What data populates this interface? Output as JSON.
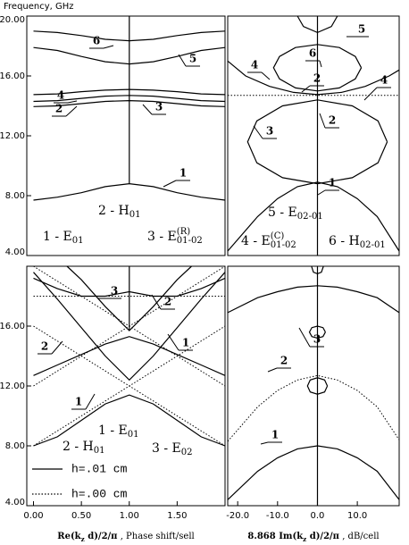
{
  "chart_data": [
    {
      "type": "line",
      "ylabel": "Frequency, GHz",
      "xlim": [
        -0.07,
        2.0
      ],
      "ylim": [
        4,
        20
      ],
      "yticks": [
        {
          "value": 4,
          "label": "4.00"
        },
        {
          "value": 8,
          "label": "8.00"
        },
        {
          "value": 12,
          "label": "12.00"
        },
        {
          "value": 16,
          "label": "16.00"
        },
        {
          "value": 20,
          "label": "20.00"
        }
      ],
      "series": [
        {
          "style": "solid",
          "x": [
            0,
            0.25,
            0.5,
            0.75,
            1,
            1.25,
            1.5,
            1.75,
            2
          ],
          "values": [
            7.7,
            7.9,
            8.2,
            8.6,
            8.8,
            8.6,
            8.2,
            7.9,
            7.7
          ]
        },
        {
          "style": "solid",
          "x": [
            0,
            0.25,
            0.5,
            0.75,
            1,
            1.25,
            1.5,
            1.75,
            2
          ],
          "values": [
            13.95,
            14.0,
            14.15,
            14.3,
            14.35,
            14.3,
            14.15,
            14.0,
            13.95
          ]
        },
        {
          "style": "solid",
          "x": [
            0,
            0.25,
            0.5,
            0.75,
            1,
            1.25,
            1.5,
            1.75,
            2
          ],
          "values": [
            14.3,
            14.35,
            14.5,
            14.65,
            14.7,
            14.65,
            14.5,
            14.35,
            14.3
          ]
        },
        {
          "style": "solid",
          "x": [
            0,
            0.25,
            0.5,
            0.75,
            1,
            1.25,
            1.5,
            1.75,
            2
          ],
          "values": [
            14.75,
            14.8,
            14.95,
            15.05,
            15.1,
            15.05,
            14.95,
            14.8,
            14.75
          ]
        },
        {
          "style": "solid",
          "x": [
            0,
            0.25,
            0.5,
            0.75,
            1,
            1.25,
            1.5,
            1.75,
            2
          ],
          "values": [
            17.9,
            17.7,
            17.3,
            16.95,
            16.8,
            16.95,
            17.3,
            17.7,
            17.9
          ]
        },
        {
          "style": "solid",
          "x": [
            0,
            0.25,
            0.5,
            0.75,
            1,
            1.25,
            1.5,
            1.75,
            2
          ],
          "values": [
            19.0,
            18.9,
            18.7,
            18.45,
            18.35,
            18.45,
            18.7,
            18.9,
            19.0
          ]
        },
        {
          "style": "solid",
          "x": [
            1,
            1
          ],
          "values": [
            8.8,
            20
          ]
        }
      ],
      "curve_labels": [
        "6",
        "5",
        "4",
        "2",
        "3",
        "1"
      ],
      "annotations": [
        [
          {
            "text": "2 - H"
          },
          {
            "text": "01",
            "script": "sub"
          }
        ],
        [
          {
            "text": "1 - E"
          },
          {
            "text": "01",
            "script": "sub"
          }
        ],
        [
          {
            "text": "3 - E"
          },
          {
            "text": "(R)",
            "script": "sup"
          },
          {
            "text": "01-02",
            "script": "sub"
          }
        ]
      ]
    },
    {
      "type": "line",
      "xlim": [
        -22.5,
        20.5
      ],
      "ylim": [
        4,
        20
      ],
      "series": [
        {
          "style": "solid",
          "x": [
            -22.5,
            -15,
            -10,
            -5,
            0,
            5,
            10,
            15,
            20.5
          ],
          "values": [
            4.3,
            6.6,
            7.8,
            8.6,
            8.9,
            8.6,
            7.8,
            6.6,
            4.3
          ]
        },
        {
          "style": "solid",
          "x": [
            17.5,
            15.2,
            8.75,
            0,
            -8.75,
            -15.2,
            -17.5,
            -15.2,
            -8.75,
            0,
            8.75,
            15.2,
            17.5
          ],
          "values": [
            11.6,
            13.0,
            14.0,
            14.4,
            14.0,
            13.0,
            11.6,
            10.2,
            9.2,
            8.8,
            9.2,
            10.2,
            11.6
          ]
        },
        {
          "style": "solid",
          "x": [
            11,
            9.5,
            5.5,
            0,
            -5.5,
            -9.5,
            -11,
            -9.5,
            -5.5,
            0,
            5.5,
            9.5,
            11
          ],
          "values": [
            16.55,
            17.3,
            17.9,
            18.1,
            17.9,
            17.3,
            16.55,
            15.8,
            15.2,
            15.0,
            15.2,
            15.8,
            16.55
          ]
        },
        {
          "style": "solid",
          "x": [
            -5,
            -3.5,
            0,
            3.5,
            5
          ],
          "values": [
            20,
            19.3,
            18.9,
            19.3,
            20
          ]
        },
        {
          "style": "solid",
          "x": [
            -22.5,
            -18,
            -12,
            -6,
            0,
            6,
            12,
            18,
            20.5
          ],
          "values": [
            17.0,
            16.0,
            15.3,
            14.9,
            14.75,
            14.9,
            15.3,
            16.0,
            16.4
          ]
        },
        {
          "style": "dotted",
          "x": [
            -22.5,
            20.5
          ],
          "values": [
            14.7,
            14.7
          ]
        },
        {
          "style": "solid",
          "x": [
            0,
            0
          ],
          "values": [
            4,
            20
          ]
        }
      ],
      "curve_labels": [
        "5",
        "6",
        "4",
        "2",
        "4",
        "2",
        "3",
        "1"
      ],
      "annotations": [
        [
          {
            "text": "5 - E"
          },
          {
            "text": "02-01",
            "script": "sub"
          }
        ],
        [
          {
            "text": "4 - E"
          },
          {
            "text": "(C)",
            "script": "sup"
          },
          {
            "text": "01-02",
            "script": "sub"
          }
        ],
        [
          {
            "text": "6 - H"
          },
          {
            "text": "02-01",
            "script": "sub"
          }
        ]
      ]
    },
    {
      "type": "line",
      "xlabel": [
        {
          "text": "Re(k",
          "weight": "bold"
        },
        {
          "text": "z",
          "script": "sub",
          "weight": "bold"
        },
        {
          "text": " d)/2/π",
          "weight": "bold"
        },
        {
          "text": " , Phase shift/sell"
        }
      ],
      "xlim": [
        -0.07,
        2.0
      ],
      "ylim": [
        4,
        20
      ],
      "xticks": [
        {
          "value": 0,
          "label": "0.00"
        },
        {
          "value": 0.5,
          "label": "0.50"
        },
        {
          "value": 1,
          "label": "1.00"
        },
        {
          "value": 1.5,
          "label": "1.50"
        }
      ],
      "yticks": [
        {
          "value": 4,
          "label": "4.00"
        },
        {
          "value": 8,
          "label": "8.00"
        },
        {
          "value": 12,
          "label": "12.00"
        },
        {
          "value": 16,
          "label": "16.00"
        }
      ],
      "series": [
        {
          "name": "h=.01 cm",
          "style": "solid",
          "x": [
            0,
            0.25,
            0.5,
            0.75,
            1,
            1.25,
            1.5,
            1.75,
            2
          ],
          "values": [
            8.0,
            8.6,
            9.7,
            10.8,
            11.4,
            10.8,
            9.7,
            8.6,
            8.0
          ]
        },
        {
          "style": "solid",
          "x": [
            0,
            0.25,
            0.5,
            0.75,
            1,
            1.25,
            1.5,
            1.75,
            2
          ],
          "values": [
            19.6,
            17.8,
            15.9,
            14.0,
            12.4,
            14.0,
            15.9,
            17.8,
            19.6
          ]
        },
        {
          "style": "solid",
          "x": [
            0,
            0.25,
            0.5,
            0.75,
            1,
            1.25,
            1.5,
            1.75,
            2
          ],
          "values": [
            12.7,
            13.4,
            14.1,
            14.8,
            15.3,
            14.8,
            14.1,
            13.4,
            12.7
          ]
        },
        {
          "style": "solid",
          "x": [
            0.35,
            0.5,
            0.75,
            1,
            1.25,
            1.5,
            1.65
          ],
          "values": [
            20.0,
            19.1,
            17.3,
            15.7,
            17.3,
            19.1,
            20.0
          ]
        },
        {
          "style": "solid",
          "x": [
            0,
            0.25,
            0.5,
            0.75,
            1,
            1.25,
            1.5,
            1.75,
            2
          ],
          "values": [
            19.2,
            18.5,
            18.0,
            18.0,
            18.3,
            18.0,
            18.0,
            18.5,
            19.2
          ]
        },
        {
          "style": "solid",
          "x": [
            1,
            1
          ],
          "values": [
            15.7,
            20
          ]
        },
        {
          "name": "h=.00 cm",
          "style": "dotted",
          "x": [
            0,
            1,
            2
          ],
          "values": [
            8.0,
            12.0,
            8.0
          ]
        },
        {
          "style": "dotted",
          "x": [
            0,
            1,
            2
          ],
          "values": [
            12.0,
            16.0,
            12.0
          ]
        },
        {
          "style": "dotted",
          "x": [
            0,
            1,
            2
          ],
          "values": [
            20.0,
            16.0,
            20.0
          ]
        },
        {
          "style": "dotted",
          "x": [
            0,
            1,
            2
          ],
          "values": [
            16.0,
            12.0,
            16.0
          ]
        },
        {
          "style": "dotted",
          "x": [
            0,
            2
          ],
          "values": [
            18.0,
            18.0
          ]
        }
      ],
      "curve_labels": [
        "3",
        "2",
        "1",
        "2",
        "1"
      ],
      "annotations": [
        [
          {
            "text": "1 - E"
          },
          {
            "text": "01",
            "script": "sub"
          }
        ],
        [
          {
            "text": "2 - H"
          },
          {
            "text": "01",
            "script": "sub"
          }
        ],
        [
          {
            "text": "3 - E"
          },
          {
            "text": "02",
            "script": "sub"
          }
        ]
      ]
    },
    {
      "type": "line",
      "xlabel": [
        {
          "text": "8.868 Im(k",
          "weight": "bold"
        },
        {
          "text": "z",
          "script": "sub",
          "weight": "bold"
        },
        {
          "text": " d)/2/π",
          "weight": "bold"
        },
        {
          "text": " , dB/cell"
        }
      ],
      "xlim": [
        -22.5,
        20.5
      ],
      "ylim": [
        4,
        20
      ],
      "xticks": [
        {
          "value": -20,
          "label": "-20.0"
        },
        {
          "value": -10,
          "label": "-10.0"
        },
        {
          "value": 0,
          "label": "0.0"
        },
        {
          "value": 10,
          "label": "10.0"
        }
      ],
      "series": [
        {
          "style": "solid",
          "x": [
            -22.5,
            -15,
            -10,
            -5,
            0,
            5,
            10,
            15,
            20.5
          ],
          "values": [
            4.4,
            6.3,
            7.2,
            7.8,
            8.0,
            7.8,
            7.2,
            6.3,
            4.4
          ]
        },
        {
          "style": "dotted",
          "x": [
            -22.5,
            -15,
            -10,
            -5,
            0,
            5,
            10,
            15,
            20.5
          ],
          "values": [
            8.3,
            10.6,
            11.7,
            12.4,
            12.7,
            12.4,
            11.7,
            10.6,
            8.4
          ]
        },
        {
          "style": "solid",
          "x": [
            -22.5,
            -15,
            -10,
            -5,
            0,
            5,
            10,
            15,
            20.5
          ],
          "values": [
            16.9,
            17.9,
            18.3,
            18.6,
            18.7,
            18.6,
            18.3,
            17.9,
            16.9
          ]
        },
        {
          "style": "solid",
          "x": [
            2.5,
            1.8,
            0,
            -1.8,
            -2.5,
            -1.8,
            0,
            1.8,
            2.5
          ],
          "values": [
            12.0,
            12.4,
            12.55,
            12.4,
            12.0,
            11.6,
            11.45,
            11.6,
            12.0
          ]
        },
        {
          "style": "solid",
          "x": [
            2,
            1.4,
            0,
            -1.4,
            -2,
            -1.4,
            0,
            1.4,
            2
          ],
          "values": [
            15.6,
            15.9,
            16.0,
            15.9,
            15.6,
            15.3,
            15.2,
            15.3,
            15.6
          ]
        },
        {
          "style": "solid",
          "x": [
            1.5,
            1,
            0,
            -1,
            -1.5
          ],
          "values": [
            20,
            19.6,
            19.5,
            19.6,
            20
          ]
        },
        {
          "style": "solid",
          "x": [
            0,
            0
          ],
          "values": [
            4,
            20
          ]
        }
      ],
      "curve_labels": [
        "3",
        "2",
        "1"
      ]
    }
  ]
}
